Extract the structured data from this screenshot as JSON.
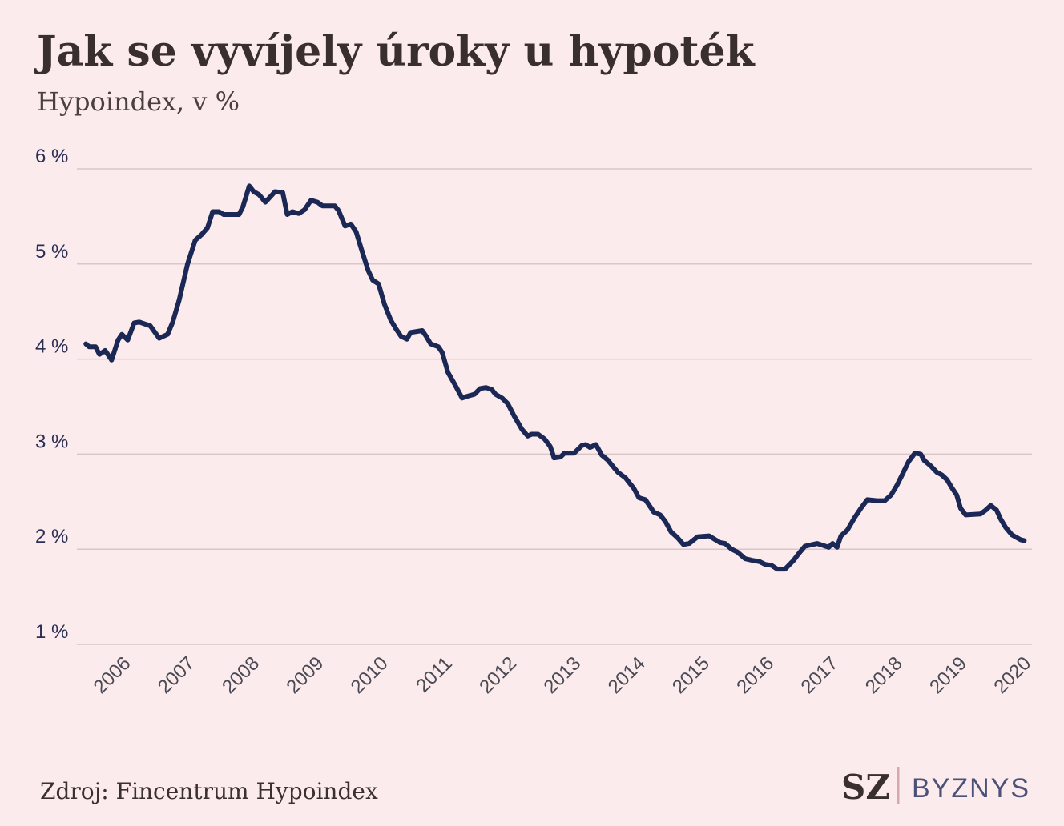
{
  "chart_data": {
    "type": "line",
    "title": "Jak se vyvíjely úroky u hypoték",
    "subtitle": "Hypoindex, v %",
    "source": "Zdroj: Fincentrum Hypoindex",
    "logo": {
      "mark": "SZ",
      "section": "BYZNYS"
    },
    "color": "#1b2755",
    "grid": true,
    "xlim": [
      2005.2,
      2020
    ],
    "xticks": [
      2006,
      2007,
      2008,
      2009,
      2010,
      2011,
      2012,
      2013,
      2014,
      2015,
      2016,
      2017,
      2018,
      2019,
      2020
    ],
    "ylim": [
      1,
      6
    ],
    "yticks": [
      {
        "value": 1,
        "label": "1 %"
      },
      {
        "value": 2,
        "label": "2 %"
      },
      {
        "value": 3,
        "label": "3 %"
      },
      {
        "value": 4,
        "label": "4 %"
      },
      {
        "value": 5,
        "label": "5 %"
      },
      {
        "value": 6,
        "label": "6 %"
      }
    ],
    "x": [
      2005.29,
      2005.34,
      2005.44,
      2005.5,
      2005.59,
      2005.69,
      2005.79,
      2005.85,
      2005.94,
      2006.04,
      2006.12,
      2006.29,
      2006.43,
      2006.56,
      2006.64,
      2006.74,
      2006.87,
      2006.99,
      2007.09,
      2007.18,
      2007.26,
      2007.36,
      2007.43,
      2007.67,
      2007.73,
      2007.83,
      2007.9,
      2007.98,
      2008.08,
      2008.23,
      2008.35,
      2008.42,
      2008.5,
      2008.6,
      2008.69,
      2008.79,
      2008.89,
      2008.97,
      2009.16,
      2009.22,
      2009.32,
      2009.41,
      2009.49,
      2009.59,
      2009.68,
      2009.75,
      2009.84,
      2009.93,
      2010.03,
      2010.11,
      2010.19,
      2010.28,
      2010.34,
      2010.52,
      2010.58,
      2010.65,
      2010.77,
      2010.83,
      2010.92,
      2011.02,
      2011.14,
      2011.23,
      2011.33,
      2011.42,
      2011.51,
      2011.6,
      2011.66,
      2011.76,
      2011.85,
      2011.95,
      2012.07,
      2012.16,
      2012.22,
      2012.32,
      2012.42,
      2012.51,
      2012.57,
      2012.67,
      2012.73,
      2012.88,
      2013.0,
      2013.06,
      2013.13,
      2013.22,
      2013.31,
      2013.4,
      2013.56,
      2013.68,
      2013.81,
      2013.89,
      2013.99,
      2014.12,
      2014.22,
      2014.3,
      2014.39,
      2014.49,
      2014.58,
      2014.67,
      2014.8,
      2014.98,
      2015.05,
      2015.15,
      2015.23,
      2015.33,
      2015.42,
      2015.54,
      2015.67,
      2015.76,
      2015.85,
      2015.95,
      2016.04,
      2016.16,
      2016.29,
      2016.37,
      2016.47,
      2016.66,
      2016.84,
      2016.9,
      2016.97,
      2017.03,
      2017.13,
      2017.24,
      2017.34,
      2017.44,
      2017.59,
      2017.71,
      2017.81,
      2017.9,
      2017.98,
      2018.08,
      2018.18,
      2018.27,
      2018.33,
      2018.42,
      2018.52,
      2018.6,
      2018.68,
      2018.76,
      2018.83,
      2018.89,
      2018.97,
      2019.2,
      2019.28,
      2019.36,
      2019.45,
      2019.51,
      2019.59,
      2019.69,
      2019.82,
      2019.88
    ],
    "values": [
      4.16,
      4.13,
      4.13,
      4.05,
      4.09,
      3.99,
      4.2,
      4.26,
      4.2,
      4.38,
      4.39,
      4.35,
      4.22,
      4.26,
      4.39,
      4.62,
      5.0,
      5.25,
      5.31,
      5.38,
      5.55,
      5.55,
      5.52,
      5.52,
      5.6,
      5.82,
      5.76,
      5.73,
      5.65,
      5.76,
      5.75,
      5.52,
      5.55,
      5.53,
      5.57,
      5.67,
      5.65,
      5.61,
      5.61,
      5.56,
      5.4,
      5.42,
      5.34,
      5.12,
      4.93,
      4.83,
      4.79,
      4.58,
      4.41,
      4.32,
      4.24,
      4.21,
      4.28,
      4.3,
      4.24,
      4.16,
      4.13,
      4.07,
      3.86,
      3.74,
      3.59,
      3.61,
      3.63,
      3.69,
      3.7,
      3.68,
      3.63,
      3.59,
      3.53,
      3.4,
      3.26,
      3.19,
      3.21,
      3.21,
      3.16,
      3.08,
      2.96,
      2.97,
      3.01,
      3.01,
      3.09,
      3.1,
      3.07,
      3.1,
      2.99,
      2.94,
      2.81,
      2.75,
      2.64,
      2.54,
      2.52,
      2.39,
      2.36,
      2.29,
      2.18,
      2.12,
      2.05,
      2.06,
      2.13,
      2.14,
      2.11,
      2.07,
      2.06,
      2.0,
      1.97,
      1.9,
      1.88,
      1.87,
      1.84,
      1.83,
      1.79,
      1.79,
      1.88,
      1.95,
      2.03,
      2.06,
      2.02,
      2.06,
      2.02,
      2.14,
      2.2,
      2.33,
      2.43,
      2.52,
      2.51,
      2.51,
      2.57,
      2.67,
      2.78,
      2.92,
      3.01,
      3.0,
      2.93,
      2.88,
      2.81,
      2.78,
      2.73,
      2.64,
      2.57,
      2.43,
      2.36,
      2.37,
      2.41,
      2.46,
      2.41,
      2.32,
      2.23,
      2.15,
      2.1,
      2.09
    ]
  }
}
